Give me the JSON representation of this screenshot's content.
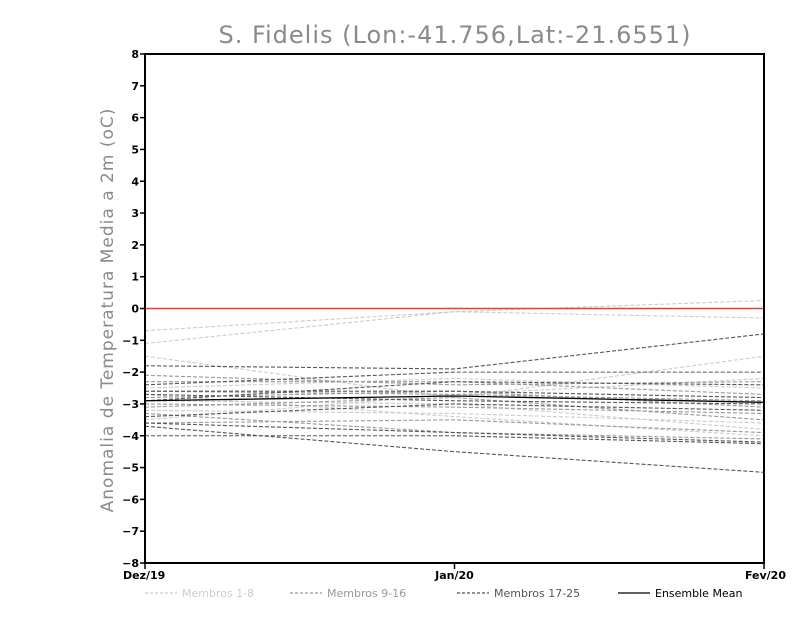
{
  "chart_data": {
    "type": "line",
    "title": "S. Fidelis (Lon:-41.756,Lat:-21.6551)",
    "ylabel": "Anomalia de Temperatura Media a 2m (oC)",
    "xlabel": "",
    "x": [
      "Dez/19",
      "Jan/20",
      "Fev/20"
    ],
    "ylim": [
      -8,
      8
    ],
    "yticks": [
      "8",
      "7",
      "6",
      "5",
      "4",
      "3",
      "2",
      "1",
      "0",
      "−1",
      "−2",
      "−3",
      "−4",
      "−5",
      "−6",
      "−7",
      "−8"
    ],
    "grid": false,
    "reference_line": {
      "value": 0,
      "color": "#e8413a"
    },
    "legend": [
      {
        "label": "Membros 1-8",
        "color": "#cccccc",
        "style": "dashed"
      },
      {
        "label": "Membros 9-16",
        "color": "#999999",
        "style": "dashed"
      },
      {
        "label": "Membros 17-25",
        "color": "#555555",
        "style": "dashed"
      },
      {
        "label": "Ensemble Mean",
        "color": "#000000",
        "style": "solid"
      }
    ],
    "series": [
      {
        "group": 1,
        "values": [
          -0.7,
          -0.1,
          0.25
        ]
      },
      {
        "group": 1,
        "values": [
          -1.1,
          -0.1,
          -0.3
        ]
      },
      {
        "group": 1,
        "values": [
          -1.5,
          -2.8,
          -1.5
        ]
      },
      {
        "group": 1,
        "values": [
          -2.5,
          -2.2,
          -2.5
        ]
      },
      {
        "group": 1,
        "values": [
          -2.9,
          -3.0,
          -3.8
        ]
      },
      {
        "group": 1,
        "values": [
          -3.2,
          -3.3,
          -3.6
        ]
      },
      {
        "group": 1,
        "values": [
          -3.5,
          -2.7,
          -2.2
        ]
      },
      {
        "group": 1,
        "values": [
          -2.7,
          -3.4,
          -4.0
        ]
      },
      {
        "group": 2,
        "values": [
          -2.3,
          -2.3,
          -2.7
        ]
      },
      {
        "group": 2,
        "values": [
          -2.8,
          -2.6,
          -3.1
        ]
      },
      {
        "group": 2,
        "values": [
          -3.0,
          -3.1,
          -3.3
        ]
      },
      {
        "group": 2,
        "values": [
          -3.3,
          -3.9,
          -4.1
        ]
      },
      {
        "group": 2,
        "values": [
          -2.6,
          -2.7,
          -2.9
        ]
      },
      {
        "group": 2,
        "values": [
          -3.6,
          -3.5,
          -3.9
        ]
      },
      {
        "group": 2,
        "values": [
          -2.1,
          -2.4,
          -2.3
        ]
      },
      {
        "group": 2,
        "values": [
          -3.1,
          -2.8,
          -3.5
        ]
      },
      {
        "group": 3,
        "values": [
          -1.8,
          -1.9,
          -0.8
        ]
      },
      {
        "group": 3,
        "values": [
          -2.4,
          -2.0,
          -2.0
        ]
      },
      {
        "group": 3,
        "values": [
          -3.7,
          -4.5,
          -5.15
        ]
      },
      {
        "group": 3,
        "values": [
          -4.0,
          -4.0,
          -4.25
        ]
      },
      {
        "group": 3,
        "values": [
          -2.9,
          -2.3,
          -2.4
        ]
      },
      {
        "group": 3,
        "values": [
          -3.4,
          -3.0,
          -3.2
        ]
      },
      {
        "group": 3,
        "values": [
          -2.7,
          -2.9,
          -3.0
        ]
      },
      {
        "group": 3,
        "values": [
          -3.6,
          -3.9,
          -4.2
        ]
      },
      {
        "group": 3,
        "values": [
          -2.6,
          -2.6,
          -2.8
        ]
      },
      {
        "group": 4,
        "values": [
          -2.9,
          -2.75,
          -2.95
        ]
      }
    ]
  }
}
